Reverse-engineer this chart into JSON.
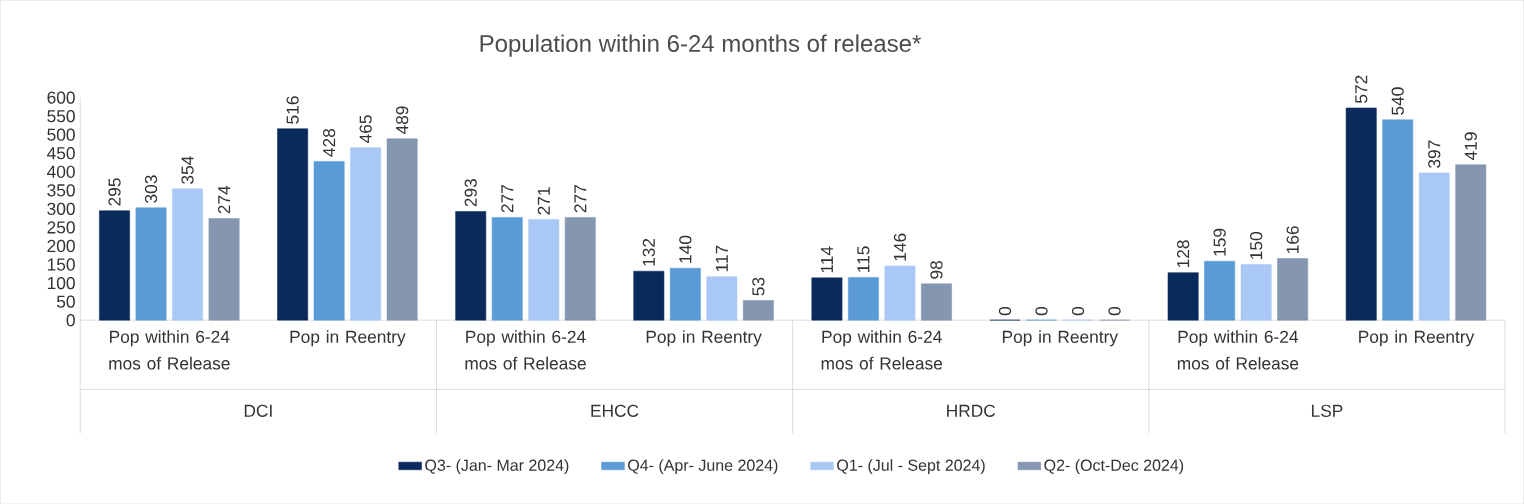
{
  "chart_data": {
    "type": "bar",
    "title": "Population within 6-24 months of release*",
    "categories": [
      "Pop within 6-24 mos of Release",
      "Pop in Reentry",
      "Pop within 6-24 mos of Release",
      "Pop in Reentry",
      "Pop within 6-24 mos of Release",
      "Pop in Reentry",
      "Pop within 6-24 mos of Release",
      "Pop in Reentry"
    ],
    "annotations": [
      "DCI",
      "EHCC",
      "HRDC",
      "LSP"
    ],
    "series": [
      {
        "name": "Q3- (Jan- Mar 2024)",
        "color": "#0b2a5c",
        "values": [
          295,
          516,
          293,
          132,
          114,
          0,
          128,
          572
        ]
      },
      {
        "name": "Q4- (Apr- June 2024)",
        "color": "#5b9bd5",
        "values": [
          303,
          428,
          277,
          140,
          115,
          0,
          159,
          540
        ]
      },
      {
        "name": "Q1- (Jul - Sept 2024)",
        "color": "#a9c8f5",
        "values": [
          354,
          465,
          271,
          117,
          146,
          0,
          150,
          397
        ]
      },
      {
        "name": "Q2- (Oct-Dec 2024)",
        "color": "#8496b0",
        "values": [
          274,
          489,
          277,
          53,
          98,
          0,
          166,
          419
        ]
      }
    ],
    "ylim": [
      0,
      600
    ],
    "yticks": [
      0,
      50,
      100,
      150,
      200,
      250,
      300,
      350,
      400,
      450,
      500,
      550,
      600
    ],
    "data_labels": true,
    "legend": "bottom"
  }
}
